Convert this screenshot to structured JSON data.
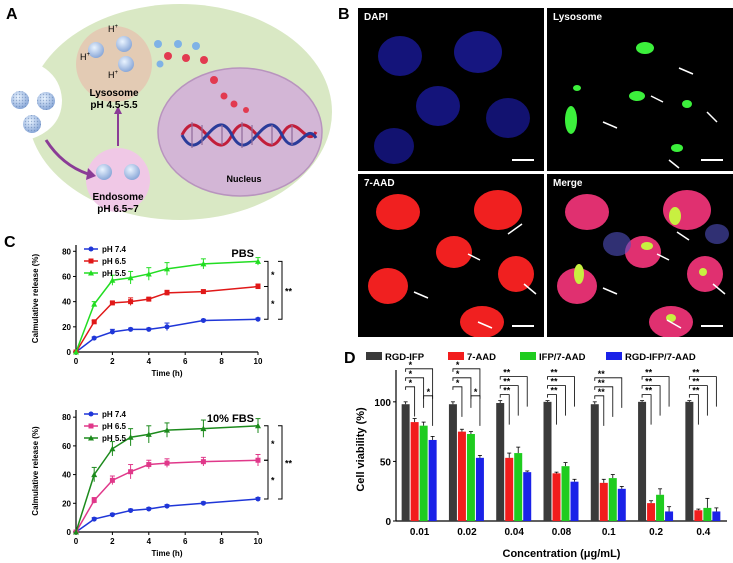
{
  "panels": {
    "A": "A",
    "B": "B",
    "C": "C",
    "D": "D"
  },
  "schematic": {
    "lysosome_title": "Lysosome",
    "lysosome_ph": "pH 4.5-5.5",
    "endosome_title": "Endosome",
    "endosome_ph": "pH 6.5~7",
    "nucleus": "Nucleus",
    "proton": "H",
    "proton_sup": "+"
  },
  "microscopy": {
    "labels": [
      "DAPI",
      "Lysosome",
      "7-AAD",
      "Merge"
    ]
  },
  "chart_data": [
    {
      "type": "line",
      "title": "PBS",
      "xlabel": "Time (h)",
      "ylabel": "Calmulative release (%)",
      "x": [
        0,
        1,
        2,
        3,
        4,
        5,
        7,
        10
      ],
      "xticks": [
        "0",
        "2",
        "4",
        "6",
        "8",
        "10"
      ],
      "xticks_values": [
        0,
        2,
        4,
        6,
        8,
        10
      ],
      "yticks": [
        "0",
        "20",
        "40",
        "60",
        "80"
      ],
      "xlim": [
        0,
        10
      ],
      "ylim": [
        0,
        85
      ],
      "series": [
        {
          "name": "pH 7.4",
          "color": "#1f36d8",
          "marker": "circle",
          "values": [
            0,
            11,
            16,
            18,
            18,
            20,
            25,
            26
          ],
          "err": [
            0,
            1,
            2,
            1,
            1,
            3,
            1,
            1
          ]
        },
        {
          "name": "pH 6.5",
          "color": "#e01818",
          "marker": "square",
          "values": [
            0,
            24,
            39,
            40,
            42,
            47,
            48,
            52
          ],
          "err": [
            0,
            1,
            1,
            3,
            1,
            2,
            1,
            2
          ]
        },
        {
          "name": "pH 5.5",
          "color": "#22dd22",
          "marker": "triangle",
          "values": [
            0,
            38,
            57,
            59,
            62,
            66,
            70,
            72
          ],
          "err": [
            0,
            2,
            4,
            5,
            5,
            5,
            4,
            3
          ]
        }
      ],
      "significance": [
        "*",
        "*",
        "**"
      ]
    },
    {
      "type": "line",
      "title": "10% FBS",
      "xlabel": "Time (h)",
      "ylabel": "Calmulative release (%)",
      "x": [
        0,
        1,
        2,
        3,
        4,
        5,
        7,
        10
      ],
      "xticks": [
        "0",
        "2",
        "4",
        "6",
        "8",
        "10"
      ],
      "xticks_values": [
        0,
        2,
        4,
        6,
        8,
        10
      ],
      "yticks": [
        "0",
        "20",
        "40",
        "60",
        "80"
      ],
      "xlim": [
        0,
        10
      ],
      "ylim": [
        0,
        85
      ],
      "series": [
        {
          "name": "pH 7.4",
          "color": "#1f36d8",
          "marker": "circle",
          "values": [
            0,
            9,
            12,
            15,
            16,
            18,
            20,
            23
          ],
          "err": [
            0,
            1,
            1,
            1,
            1,
            1,
            1,
            1
          ]
        },
        {
          "name": "pH 6.5",
          "color": "#e0388a",
          "marker": "square",
          "values": [
            0,
            22,
            36,
            42,
            47,
            48,
            49,
            50
          ],
          "err": [
            0,
            2,
            3,
            5,
            3,
            3,
            3,
            4
          ]
        },
        {
          "name": "pH 5.5",
          "color": "#1c8a1c",
          "marker": "triangle",
          "values": [
            0,
            40,
            58,
            66,
            68,
            71,
            72,
            74
          ],
          "err": [
            0,
            5,
            5,
            6,
            6,
            5,
            6,
            5
          ]
        }
      ],
      "significance": [
        "*",
        "*",
        "**"
      ]
    },
    {
      "type": "bar",
      "title": "",
      "xlabel": "Concentration (μg/mL)",
      "ylabel": "Cell viability (%)",
      "categories": [
        "0.01",
        "0.02",
        "0.04",
        "0.08",
        "0.1",
        "0.2",
        "0.4"
      ],
      "yticks": [
        "0",
        "50",
        "100"
      ],
      "ylim": [
        0,
        120
      ],
      "series": [
        {
          "name": "RGD-IFP",
          "color": "#3a3a3a",
          "values": [
            98,
            98,
            99,
            100,
            98,
            100,
            100
          ],
          "err": [
            2,
            2,
            2,
            1,
            2,
            1,
            1
          ]
        },
        {
          "name": "7-AAD",
          "color": "#f21d1d",
          "values": [
            83,
            75,
            53,
            40,
            32,
            15,
            9
          ],
          "err": [
            3,
            2,
            4,
            1,
            3,
            2,
            1
          ]
        },
        {
          "name": "IFP/7-AAD",
          "color": "#1fcc1f",
          "values": [
            80,
            73,
            57,
            46,
            36,
            22,
            11
          ],
          "err": [
            3,
            2,
            5,
            3,
            3,
            5,
            8
          ]
        },
        {
          "name": "RGD-IFP/7-AAD",
          "color": "#1a22e8",
          "values": [
            68,
            53,
            41,
            33,
            27,
            8,
            8
          ],
          "err": [
            3,
            2,
            1,
            2,
            2,
            4,
            3
          ]
        }
      ],
      "significance_sets": [
        [
          "*",
          "*",
          "*",
          "*"
        ],
        [
          "*",
          "*",
          "*",
          "*"
        ],
        [
          "**",
          "**",
          "**"
        ],
        [
          "**",
          "**",
          "**"
        ],
        [
          "**",
          "**",
          "**"
        ],
        [
          "**",
          "**",
          "**"
        ],
        [
          "**",
          "**",
          "**"
        ]
      ]
    }
  ]
}
